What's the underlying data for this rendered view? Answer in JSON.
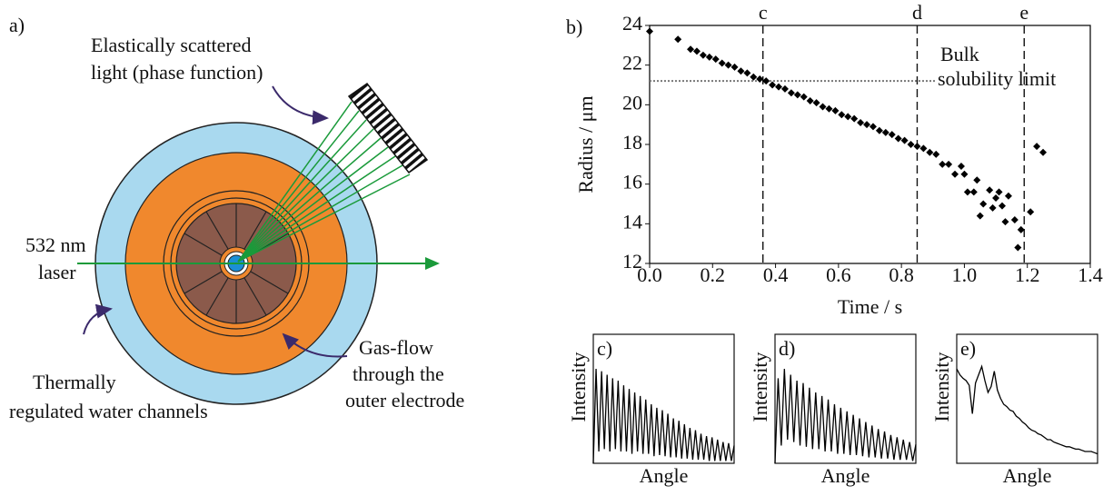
{
  "diagram": {
    "label": "a)",
    "scattered_light": [
      "Elastically scattered",
      "light (phase function)"
    ],
    "laser": [
      "532 nm",
      "laser"
    ],
    "water": [
      "Thermally",
      "regulated water channels"
    ],
    "gas_flow": [
      "Gas-flow",
      "through the",
      "outer electrode"
    ]
  },
  "chart_data": [
    {
      "type": "scatter",
      "label": "b)",
      "xlabel": "Time / s",
      "ylabel": "Radius / μm",
      "color": "#000000",
      "xlim": [
        0,
        1.4
      ],
      "xticks": [
        {
          "value": 0,
          "label": "0.0"
        },
        0.2,
        0.4,
        0.6,
        0.8,
        {
          "value": 1,
          "label": "1.0"
        },
        1.2,
        1.4
      ],
      "ylim": [
        12,
        24
      ],
      "yticks": [
        12,
        14,
        16,
        18,
        20,
        22,
        24
      ],
      "vlines": [
        {
          "x": 0.36,
          "label": "c"
        },
        {
          "x": 0.85,
          "label": "d"
        },
        {
          "x": 1.19,
          "label": "e"
        }
      ],
      "hline": {
        "y": 21.2,
        "label": [
          "Bulk",
          "solubility limit"
        ]
      },
      "x": [
        0,
        0.09,
        0.13,
        0.15,
        0.17,
        0.19,
        0.21,
        0.23,
        0.25,
        0.27,
        0.29,
        0.31,
        0.33,
        0.35,
        0.37,
        0.39,
        0.41,
        0.43,
        0.45,
        0.47,
        0.49,
        0.51,
        0.53,
        0.55,
        0.57,
        0.59,
        0.61,
        0.63,
        0.65,
        0.67,
        0.69,
        0.71,
        0.73,
        0.75,
        0.77,
        0.79,
        0.81,
        0.83,
        0.85,
        0.87,
        0.89,
        0.91,
        0.93,
        0.95,
        0.97,
        0.99,
        1.0,
        1.01,
        1.03,
        1.04,
        1.05,
        1.06,
        1.08,
        1.09,
        1.1,
        1.11,
        1.12,
        1.13,
        1.14,
        1.16,
        1.17,
        1.18,
        1.21,
        1.23,
        1.25
      ],
      "y": [
        23.7,
        23.3,
        22.8,
        22.7,
        22.5,
        22.4,
        22.3,
        22.1,
        22.0,
        21.9,
        21.7,
        21.6,
        21.4,
        21.3,
        21.2,
        21.0,
        20.9,
        20.8,
        20.6,
        20.5,
        20.4,
        20.2,
        20.1,
        19.9,
        19.8,
        19.7,
        19.5,
        19.4,
        19.3,
        19.1,
        19.0,
        18.9,
        18.7,
        18.6,
        18.5,
        18.3,
        18.2,
        18.0,
        17.9,
        17.8,
        17.6,
        17.5,
        17.0,
        17.0,
        16.5,
        16.9,
        16.5,
        15.6,
        15.6,
        16.2,
        14.4,
        15.0,
        15.7,
        14.8,
        15.3,
        15.6,
        14.9,
        14.1,
        15.4,
        14.2,
        12.8,
        13.7,
        14.6,
        17.9,
        17.6
      ]
    },
    {
      "type": "line",
      "label": "c)",
      "xlabel": "Angle",
      "ylabel": "Intensity",
      "color": "#000000",
      "ylim": [
        0,
        1
      ],
      "values": [
        0.0,
        0.8,
        0.1,
        0.78,
        0.12,
        0.75,
        0.1,
        0.72,
        0.12,
        0.7,
        0.1,
        0.66,
        0.1,
        0.63,
        0.08,
        0.6,
        0.1,
        0.57,
        0.08,
        0.54,
        0.08,
        0.5,
        0.06,
        0.47,
        0.07,
        0.45,
        0.06,
        0.42,
        0.05,
        0.38,
        0.05,
        0.36,
        0.04,
        0.33,
        0.04,
        0.3,
        0.03,
        0.28,
        0.03,
        0.25,
        0.03,
        0.23,
        0.02,
        0.22,
        0.02,
        0.2,
        0.02,
        0.18,
        0.02,
        0.17,
        0.02,
        0.15
      ]
    },
    {
      "type": "line",
      "label": "d)",
      "xlabel": "Angle",
      "ylabel": "Intensity",
      "color": "#000000",
      "ylim": [
        0,
        1
      ],
      "values": [
        0.0,
        0.72,
        0.15,
        0.8,
        0.2,
        0.75,
        0.18,
        0.7,
        0.15,
        0.68,
        0.14,
        0.64,
        0.12,
        0.6,
        0.12,
        0.57,
        0.1,
        0.54,
        0.1,
        0.5,
        0.08,
        0.47,
        0.08,
        0.44,
        0.07,
        0.41,
        0.07,
        0.38,
        0.06,
        0.35,
        0.05,
        0.32,
        0.05,
        0.29,
        0.04,
        0.27,
        0.04,
        0.24,
        0.03,
        0.22,
        0.03,
        0.2,
        0.03,
        0.18,
        0.02,
        0.16
      ]
    },
    {
      "type": "line",
      "label": "e)",
      "xlabel": "Angle",
      "ylabel": "Intensity",
      "color": "#000000",
      "ylim": [
        0,
        1
      ],
      "values": [
        0.8,
        0.75,
        0.72,
        0.7,
        0.66,
        0.42,
        0.68,
        0.75,
        0.82,
        0.7,
        0.6,
        0.65,
        0.78,
        0.62,
        0.55,
        0.5,
        0.48,
        0.45,
        0.44,
        0.4,
        0.38,
        0.35,
        0.33,
        0.3,
        0.28,
        0.27,
        0.25,
        0.24,
        0.22,
        0.2,
        0.2,
        0.18,
        0.17,
        0.16,
        0.15,
        0.14,
        0.14,
        0.13,
        0.12,
        0.12,
        0.11,
        0.1,
        0.1,
        0.1,
        0.09,
        0.08
      ]
    }
  ]
}
